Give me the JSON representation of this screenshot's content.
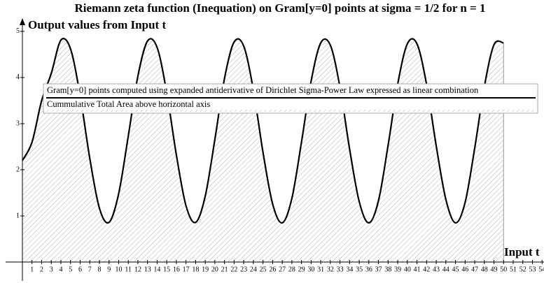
{
  "chart_data": {
    "type": "line",
    "title": "Riemann zeta function (Inequation) on Gram[y=0] points at sigma = 1/2 for n = 1",
    "y_label": "Output values from Input t",
    "x_label": "Input t",
    "x": [
      0,
      1,
      2,
      3,
      4,
      5,
      6,
      7,
      8,
      9,
      10,
      11,
      12,
      13,
      14,
      15,
      16,
      17,
      18,
      19,
      20,
      21,
      22,
      23,
      24,
      25,
      26,
      27,
      28,
      29,
      30,
      31,
      32,
      33,
      34,
      35,
      36,
      37,
      38,
      39,
      40,
      41,
      42,
      43,
      44,
      45,
      46,
      47,
      48,
      49,
      50
    ],
    "series": [
      {
        "name": "Gram[y=0] points computed using expanded antiderivative of Dirichlet Sigma-Power Law expressed as linear combination",
        "color": "#000000",
        "values": [
          2.2,
          2.6,
          3.5,
          4.09,
          4.81,
          4.62,
          3.61,
          2.25,
          1.17,
          0.86,
          1.48,
          2.73,
          4.03,
          4.79,
          4.65,
          3.67,
          2.32,
          1.22,
          0.86,
          1.43,
          2.66,
          3.98,
          4.77,
          4.68,
          3.73,
          2.38,
          1.26,
          0.85,
          1.38,
          2.6,
          3.92,
          4.75,
          4.7,
          3.79,
          2.45,
          1.31,
          0.85,
          1.33,
          2.53,
          3.86,
          4.73,
          4.73,
          3.85,
          2.52,
          1.36,
          0.85,
          1.29,
          2.47,
          3.8,
          4.71,
          4.75
        ]
      }
    ],
    "area_name": "Cummulative Total Area above horizontal axis",
    "xlim": [
      0,
      54.2
    ],
    "ylim": [
      0,
      5.12
    ],
    "xticks": [
      1,
      2,
      3,
      4,
      5,
      6,
      7,
      8,
      9,
      10,
      11,
      12,
      13,
      14,
      15,
      16,
      17,
      18,
      19,
      20,
      21,
      22,
      23,
      24,
      25,
      26,
      27,
      28,
      29,
      30,
      31,
      32,
      33,
      34,
      35,
      36,
      37,
      38,
      39,
      40,
      41,
      42,
      43,
      44,
      45,
      46,
      47,
      48,
      49,
      50,
      51,
      52,
      53,
      54
    ],
    "yticks": [
      1,
      2,
      3,
      4,
      5
    ]
  }
}
